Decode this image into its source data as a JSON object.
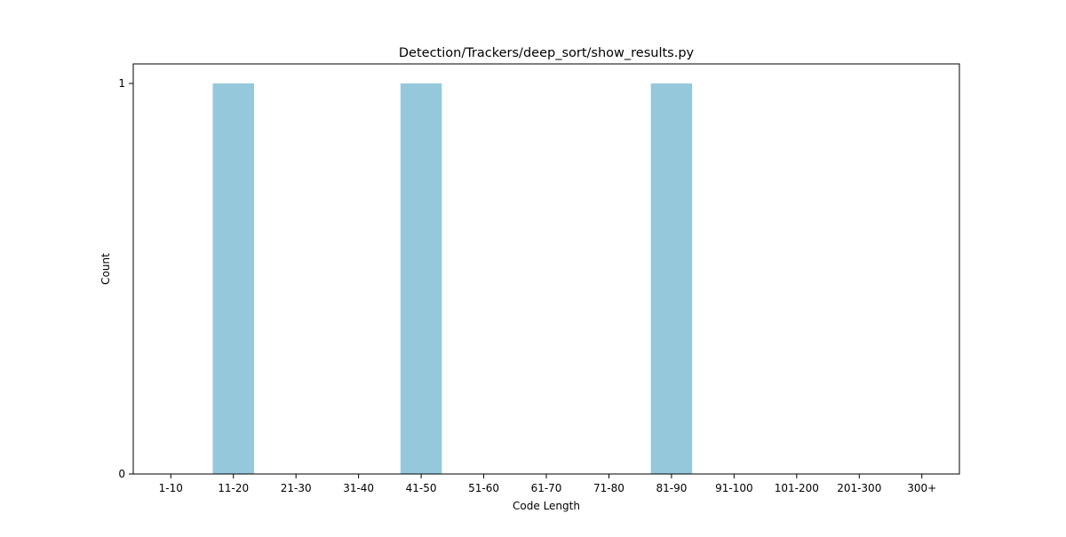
{
  "chart_data": {
    "type": "bar",
    "title": "Detection/Trackers/deep_sort/show_results.py",
    "xlabel": "Code Length",
    "ylabel": "Count",
    "categories": [
      "1-10",
      "11-20",
      "21-30",
      "31-40",
      "41-50",
      "51-60",
      "61-70",
      "71-80",
      "81-90",
      "91-100",
      "101-200",
      "201-300",
      "300+"
    ],
    "values": [
      0,
      1,
      0,
      0,
      1,
      0,
      0,
      0,
      1,
      0,
      0,
      0,
      0
    ],
    "ylim": [
      0,
      1.05
    ],
    "yticks": [
      0,
      1
    ],
    "grid": false,
    "legend": "none",
    "bar_color": "#96c8dc"
  }
}
